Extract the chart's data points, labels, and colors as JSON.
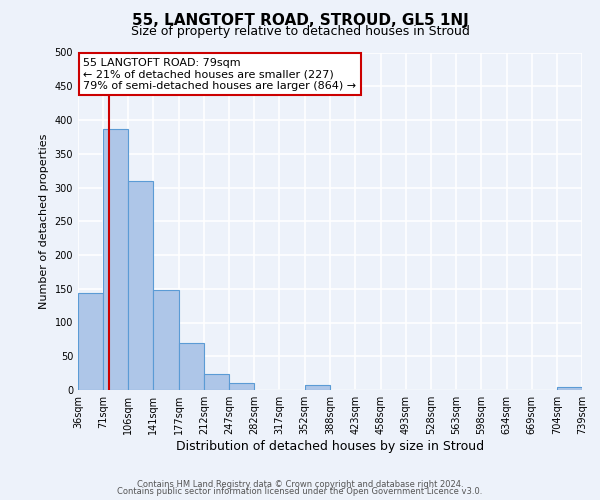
{
  "title": "55, LANGTOFT ROAD, STROUD, GL5 1NJ",
  "subtitle": "Size of property relative to detached houses in Stroud",
  "xlabel": "Distribution of detached houses by size in Stroud",
  "ylabel": "Number of detached properties",
  "bin_edges": [
    36,
    71,
    106,
    141,
    177,
    212,
    247,
    282,
    317,
    352,
    388,
    423,
    458,
    493,
    528,
    563,
    598,
    634,
    669,
    704,
    739
  ],
  "bin_heights": [
    143,
    387,
    309,
    148,
    70,
    24,
    10,
    0,
    0,
    8,
    0,
    0,
    0,
    0,
    0,
    0,
    0,
    0,
    0,
    5
  ],
  "bar_color": "#aec6e8",
  "bar_edge_color": "#5b9bd5",
  "property_line_x": 79,
  "property_line_color": "#cc0000",
  "annotation_line1": "55 LANGTOFT ROAD: 79sqm",
  "annotation_line2": "← 21% of detached houses are smaller (227)",
  "annotation_line3": "79% of semi-detached houses are larger (864) →",
  "annotation_box_color": "#ffffff",
  "annotation_box_edge_color": "#cc0000",
  "tick_labels": [
    "36sqm",
    "71sqm",
    "106sqm",
    "141sqm",
    "177sqm",
    "212sqm",
    "247sqm",
    "282sqm",
    "317sqm",
    "352sqm",
    "388sqm",
    "423sqm",
    "458sqm",
    "493sqm",
    "528sqm",
    "563sqm",
    "598sqm",
    "634sqm",
    "669sqm",
    "704sqm",
    "739sqm"
  ],
  "ylim": [
    0,
    500
  ],
  "yticks": [
    0,
    50,
    100,
    150,
    200,
    250,
    300,
    350,
    400,
    450,
    500
  ],
  "footer1": "Contains HM Land Registry data © Crown copyright and database right 2024.",
  "footer2": "Contains public sector information licensed under the Open Government Licence v3.0.",
  "bg_color": "#edf2fa",
  "grid_color": "#ffffff",
  "title_fontsize": 11,
  "subtitle_fontsize": 9,
  "ylabel_fontsize": 8,
  "xlabel_fontsize": 9,
  "tick_fontsize": 7,
  "annotation_fontsize": 8,
  "footer_fontsize": 6
}
